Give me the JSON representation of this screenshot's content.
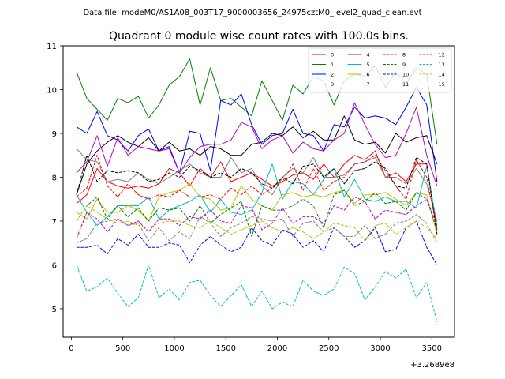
{
  "chart_data": {
    "type": "line",
    "suptitle": "Data file: modeM0/AS1A08_003T17_9000003656_24975cztM0_level2_quad_clean.evt",
    "title": "Quadrant 0 module wise count rates with 100.0s bins.",
    "xlabel": "",
    "ylabel": "",
    "offset_text": "+3.2689e8",
    "xlim": [
      -80,
      3720
    ],
    "ylim": [
      4.35,
      11.0
    ],
    "xticks": [
      0,
      500,
      1000,
      1500,
      2000,
      2500,
      3000,
      3500
    ],
    "yticks": [
      5,
      6,
      7,
      8,
      9,
      10,
      11
    ],
    "grid": false,
    "legend_position": "top-right",
    "x": [
      50,
      150,
      250,
      350,
      450,
      550,
      650,
      750,
      850,
      950,
      1050,
      1150,
      1250,
      1350,
      1450,
      1550,
      1650,
      1750,
      1850,
      1950,
      2050,
      2150,
      2250,
      2350,
      2450,
      2550,
      2650,
      2750,
      2850,
      2950,
      3050,
      3150,
      3250,
      3350,
      3450,
      3550
    ],
    "series": [
      {
        "name": "0",
        "color": "#ff0000",
        "dash": "solid",
        "values": [
          7.4,
          7.6,
          8.2,
          7.9,
          7.8,
          7.75,
          7.8,
          7.75,
          7.85,
          8.2,
          8.1,
          7.8,
          8.2,
          8.0,
          8.35,
          7.9,
          8.0,
          8.1,
          7.95,
          7.8,
          7.9,
          8.05,
          8.1,
          7.95,
          8.3,
          8.0,
          8.3,
          8.5,
          8.4,
          8.6,
          8.0,
          8.1,
          7.9,
          8.3,
          8.3,
          6.8
        ]
      },
      {
        "name": "1",
        "color": "#008000",
        "dash": "solid",
        "values": [
          10.4,
          9.8,
          9.55,
          9.3,
          9.8,
          9.7,
          9.85,
          9.35,
          9.65,
          10.1,
          10.3,
          10.7,
          9.65,
          10.5,
          9.75,
          9.8,
          9.6,
          9.4,
          10.2,
          9.75,
          9.3,
          10.1,
          9.9,
          10.3,
          10.2,
          9.65,
          10.2,
          10.35,
          10.3,
          10.55,
          10.05,
          10.4,
          10.15,
          10.5,
          10.35,
          8.75
        ]
      },
      {
        "name": "2",
        "color": "#0000ff",
        "dash": "solid",
        "values": [
          9.15,
          9.0,
          9.5,
          8.95,
          8.85,
          8.6,
          8.95,
          9.1,
          8.6,
          8.7,
          8.1,
          9.05,
          9.0,
          8.15,
          9.75,
          9.65,
          9.9,
          9.2,
          8.75,
          8.95,
          9.0,
          9.55,
          9.0,
          8.95,
          8.6,
          9.2,
          9.15,
          9.6,
          9.35,
          9.4,
          9.35,
          9.2,
          9.6,
          10.05,
          9.65,
          7.9
        ]
      },
      {
        "name": "3",
        "color": "#000000",
        "dash": "solid",
        "values": [
          7.6,
          8.3,
          8.6,
          8.8,
          8.95,
          8.8,
          8.7,
          8.9,
          8.6,
          8.8,
          8.6,
          8.65,
          8.5,
          8.7,
          8.65,
          8.5,
          8.5,
          8.75,
          8.8,
          9.0,
          8.95,
          9.15,
          8.9,
          9.05,
          8.85,
          8.85,
          9.4,
          8.85,
          8.75,
          8.8,
          8.55,
          9.0,
          8.8,
          8.9,
          8.95,
          8.3
        ]
      },
      {
        "name": "4",
        "color": "#bf00bf",
        "dash": "solid",
        "values": [
          8.1,
          8.35,
          8.95,
          8.25,
          8.9,
          8.5,
          8.7,
          8.65,
          8.6,
          8.65,
          8.1,
          8.45,
          8.7,
          8.75,
          8.75,
          8.85,
          9.25,
          9.15,
          8.65,
          8.85,
          8.95,
          8.55,
          8.8,
          8.65,
          8.6,
          8.85,
          9.0,
          9.7,
          9.2,
          8.75,
          8.45,
          8.5,
          9.0,
          9.6,
          8.5,
          7.8
        ]
      },
      {
        "name": "5",
        "color": "#00bfbf",
        "dash": "solid",
        "values": [
          7.6,
          7.2,
          6.9,
          7.1,
          7.35,
          7.35,
          7.35,
          7.55,
          7.05,
          7.25,
          7.35,
          7.45,
          7.6,
          7.2,
          7.5,
          7.2,
          7.15,
          7.25,
          7.65,
          8.3,
          7.5,
          7.9,
          7.85,
          7.6,
          7.95,
          8.2,
          7.55,
          7.95,
          7.5,
          7.45,
          7.55,
          7.45,
          7.45,
          7.3,
          8.25,
          6.9
        ]
      },
      {
        "name": "6",
        "color": "#bfbf00",
        "dash": "solid",
        "values": [
          7.2,
          7.05,
          7.5,
          7.2,
          7.2,
          7.35,
          7.25,
          7.0,
          7.55,
          7.65,
          7.7,
          7.85,
          7.55,
          7.5,
          7.25,
          7.3,
          7.8,
          7.5,
          7.35,
          7.25,
          7.6,
          7.65,
          7.55,
          7.6,
          7.55,
          7.65,
          7.7,
          7.4,
          7.6,
          7.6,
          7.65,
          7.5,
          7.35,
          7.65,
          7.6,
          6.7
        ]
      },
      {
        "name": "7",
        "color": "#808080",
        "dash": "solid",
        "values": [
          8.65,
          8.4,
          8.35,
          7.9,
          7.95,
          7.9,
          8.1,
          7.95,
          7.85,
          8.0,
          8.15,
          8.3,
          8.1,
          8.0,
          8.0,
          8.45,
          8.1,
          8.2,
          7.8,
          7.6,
          8.0,
          8.2,
          8.1,
          8.45,
          8.0,
          8.0,
          8.05,
          8.3,
          8.35,
          8.45,
          8.0,
          8.0,
          7.85,
          8.2,
          7.85,
          7.0
        ]
      },
      {
        "name": "8",
        "color": "#ff0000",
        "dash": "dashed",
        "values": [
          7.55,
          7.75,
          8.5,
          7.8,
          7.55,
          7.85,
          7.6,
          7.5,
          7.6,
          7.55,
          7.7,
          7.55,
          7.55,
          7.6,
          7.5,
          7.75,
          7.6,
          7.8,
          7.6,
          7.75,
          7.9,
          8.3,
          7.7,
          8.2,
          7.7,
          7.9,
          8.0,
          8.3,
          8.35,
          8.5,
          8.15,
          7.8,
          7.5,
          8.4,
          8.0,
          6.85
        ]
      },
      {
        "name": "9",
        "color": "#008000",
        "dash": "dashed",
        "values": [
          7.0,
          7.35,
          7.55,
          7.05,
          7.35,
          7.1,
          7.3,
          7.0,
          7.3,
          7.25,
          7.3,
          7.0,
          7.35,
          6.95,
          7.15,
          7.3,
          7.45,
          6.65,
          7.35,
          7.25,
          7.25,
          7.35,
          7.5,
          7.35,
          6.85,
          7.6,
          7.7,
          7.35,
          7.45,
          7.65,
          7.4,
          7.45,
          7.25,
          7.65,
          7.5,
          6.8
        ]
      },
      {
        "name": "10",
        "color": "#0000ff",
        "dash": "dashed",
        "values": [
          6.4,
          6.4,
          6.45,
          6.25,
          6.6,
          6.45,
          6.7,
          6.4,
          6.4,
          6.5,
          6.45,
          6.05,
          6.45,
          6.65,
          6.45,
          6.3,
          6.4,
          6.85,
          6.55,
          6.45,
          6.8,
          6.7,
          6.4,
          6.55,
          6.3,
          6.85,
          6.65,
          6.4,
          6.55,
          6.85,
          6.3,
          6.35,
          6.85,
          7.0,
          6.4,
          6.0
        ]
      },
      {
        "name": "11",
        "color": "#000000",
        "dash": "dashed",
        "values": [
          7.6,
          8.5,
          7.9,
          8.15,
          8.1,
          8.15,
          8.1,
          7.9,
          7.95,
          8.1,
          8.0,
          8.25,
          8.15,
          8.0,
          8.1,
          8.0,
          8.2,
          8.1,
          7.85,
          7.75,
          8.0,
          7.85,
          8.25,
          8.3,
          8.0,
          8.2,
          7.85,
          8.15,
          8.2,
          8.35,
          8.2,
          7.8,
          7.75,
          8.45,
          8.3,
          6.7
        ]
      },
      {
        "name": "12",
        "color": "#bf00bf",
        "dash": "dashed",
        "values": [
          6.6,
          7.2,
          7.05,
          6.75,
          7.05,
          6.9,
          7.0,
          6.75,
          7.05,
          7.05,
          6.9,
          7.1,
          7.05,
          7.25,
          7.0,
          6.95,
          7.35,
          7.3,
          6.8,
          6.95,
          7.3,
          6.95,
          7.1,
          7.1,
          6.95,
          7.35,
          7.25,
          7.55,
          7.45,
          7.05,
          7.25,
          7.2,
          7.15,
          7.35,
          7.5,
          6.9
        ]
      },
      {
        "name": "13",
        "color": "#00bfbf",
        "dash": "dashed",
        "values": [
          6.0,
          5.4,
          5.5,
          5.7,
          5.35,
          5.05,
          5.25,
          6.0,
          5.25,
          5.45,
          5.2,
          5.6,
          5.65,
          5.3,
          5.05,
          5.3,
          5.55,
          5.05,
          5.4,
          5.0,
          5.15,
          5.05,
          5.65,
          5.4,
          5.3,
          5.45,
          5.95,
          5.8,
          5.2,
          5.5,
          5.85,
          5.7,
          5.9,
          5.25,
          5.6,
          4.7
        ]
      },
      {
        "name": "14",
        "color": "#bfbf00",
        "dash": "dashed",
        "values": [
          7.0,
          7.35,
          7.2,
          7.05,
          6.95,
          7.0,
          6.9,
          6.85,
          6.95,
          7.0,
          7.0,
          6.9,
          6.85,
          7.0,
          6.85,
          6.7,
          6.8,
          6.9,
          7.0,
          6.85,
          6.75,
          6.85,
          6.75,
          6.6,
          6.75,
          6.95,
          6.9,
          6.85,
          6.55,
          6.9,
          6.95,
          6.7,
          6.85,
          7.0,
          6.85,
          6.6
        ]
      },
      {
        "name": "15",
        "color": "#808080",
        "dash": "dashed",
        "values": [
          6.5,
          6.6,
          6.95,
          7.0,
          7.05,
          6.9,
          6.95,
          6.55,
          6.85,
          6.55,
          6.75,
          6.6,
          7.1,
          6.95,
          6.65,
          6.85,
          6.95,
          7.1,
          7.05,
          7.0,
          7.05,
          6.65,
          6.95,
          7.0,
          6.75,
          6.85,
          6.65,
          6.65,
          6.9,
          6.6,
          6.7,
          6.95,
          7.0,
          7.15,
          6.95,
          6.5
        ]
      }
    ]
  }
}
